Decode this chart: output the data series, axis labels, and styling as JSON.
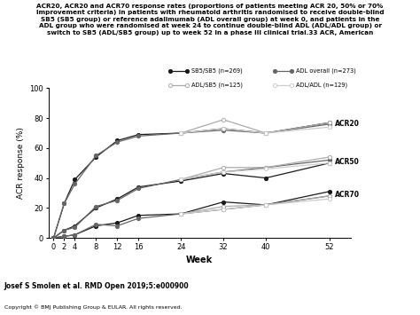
{
  "title_lines": [
    "ACR20, ACR20 and ACR70 response rates (proportions of patients meeting ACR 20, 50% or 70%",
    "improvement criteria) in patients with rheumatoid arthritis randomised to receive double-blind",
    "SB5 (SB5 group) or reference adalimumab (ADL overall group) at week 0, and patients in the",
    "ADL group who were randomised at week 24 to continue double-blind ADL (ADL/ADL group) or",
    "switch to SB5 (ADL/SB5 group) up to week 52 in a phase III clinical trial.33 ACR, American"
  ],
  "xlabel": "Week",
  "ylabel": "ACR response (%)",
  "weeks": [
    0,
    2,
    4,
    8,
    12,
    16,
    24,
    32,
    40,
    52
  ],
  "ACR20_SB5SB5": [
    0,
    23,
    39,
    54,
    65,
    69,
    70,
    73,
    70,
    77
  ],
  "ACR20_ADLoverall": [
    0,
    23,
    36,
    55,
    64,
    68,
    70,
    72,
    70,
    76
  ],
  "ACR20_ADLSB5": [
    null,
    null,
    null,
    null,
    null,
    null,
    70,
    79,
    70,
    77
  ],
  "ACR20_ADLADL": [
    null,
    null,
    null,
    null,
    null,
    null,
    70,
    73,
    70,
    74
  ],
  "ACR50_SB5SB5": [
    0,
    5,
    8,
    20,
    26,
    34,
    38,
    43,
    40,
    50
  ],
  "ACR50_ADLoverall": [
    0,
    5,
    7,
    21,
    25,
    33,
    39,
    44,
    47,
    52
  ],
  "ACR50_ADLSB5": [
    null,
    null,
    null,
    null,
    null,
    null,
    39,
    47,
    47,
    54
  ],
  "ACR50_ADLADL": [
    null,
    null,
    null,
    null,
    null,
    null,
    39,
    44,
    46,
    50
  ],
  "ACR70_SB5SB5": [
    0,
    1,
    2,
    8,
    10,
    15,
    16,
    24,
    22,
    31
  ],
  "ACR70_ADLoverall": [
    0,
    1,
    2,
    9,
    8,
    13,
    16,
    19,
    22,
    28
  ],
  "ACR70_ADLSB5": [
    null,
    null,
    null,
    null,
    null,
    null,
    16,
    21,
    22,
    28
  ],
  "ACR70_ADLADL": [
    null,
    null,
    null,
    null,
    null,
    null,
    16,
    19,
    22,
    26
  ],
  "legend_SB5SB5": "SB5/SB5 (n=269)",
  "legend_ADLoverall": "ADL overall (n=273)",
  "legend_ADLSB5": "ADL/SB5 (n=125)",
  "legend_ADLADL": "ADL/ADL (n=129)",
  "author_text": "Josef S Smolen et al. RMD Open 2019;5:e000900",
  "copyright_text": "Copyright © BMJ Publishing Group & EULAR. All rights reserved.",
  "color_SB5SB5": "#1a1a1a",
  "color_ADLoverall": "#666666",
  "color_ADLSB5": "#aaaaaa",
  "color_ADLADL": "#cccccc",
  "rmd_bg": "#1e7e3e",
  "ylim": [
    0,
    100
  ],
  "yticks": [
    0,
    20,
    40,
    60,
    80,
    100
  ],
  "xticks": [
    0,
    2,
    4,
    8,
    12,
    16,
    24,
    32,
    40,
    52
  ]
}
